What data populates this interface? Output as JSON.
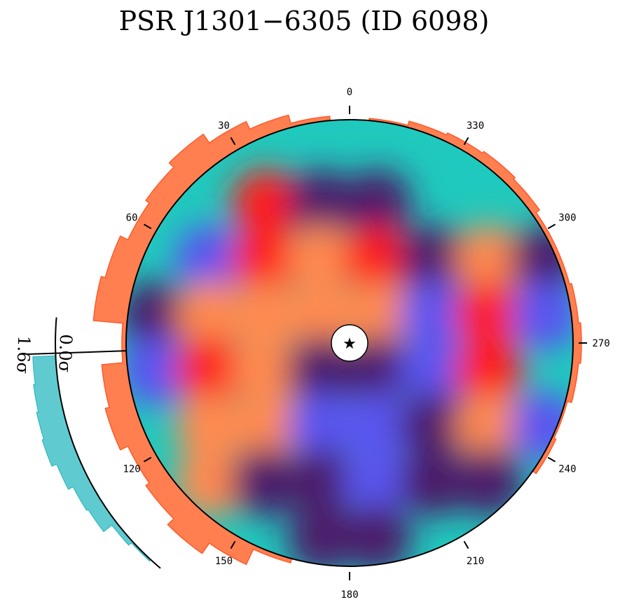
{
  "title": "PSR J1301−6305 (ID 6098)",
  "chart_data": {
    "type": "heatmap",
    "projection": "polar sky map (azimuth in degrees, clockwise from top)",
    "azimuth_ticks": [
      0,
      30,
      60,
      120,
      150,
      180,
      210,
      240,
      270,
      300,
      330
    ],
    "angular_profile_color": "#ff7f50",
    "significance_profile_color": "#5fcbd0",
    "significance_scale": {
      "labels": [
        "0.0σ",
        "1.6σ"
      ],
      "min": 0.0,
      "max": 1.6
    },
    "center_marker": "star",
    "colormap": [
      "#20c9bd",
      "#5a55f0",
      "#4b1c6b",
      "#ff1a1a",
      "#ff8a50"
    ],
    "map_grid": {
      "rows": 8,
      "cols": 8,
      "note_values": "relative intensity 0–1, row 0 = top",
      "values": [
        [
          0.0,
          0.0,
          0.0,
          0.0,
          0.0,
          0.0,
          0.0,
          0.0
        ],
        [
          0.0,
          0.1,
          0.7,
          0.3,
          0.4,
          0.0,
          0.0,
          0.0
        ],
        [
          0.0,
          0.2,
          0.6,
          0.9,
          0.7,
          0.3,
          0.8,
          0.4
        ],
        [
          0.3,
          0.8,
          0.9,
          1.0,
          0.8,
          0.2,
          0.6,
          0.2
        ],
        [
          0.2,
          0.7,
          0.9,
          0.4,
          0.3,
          0.2,
          0.5,
          0.1
        ],
        [
          0.1,
          0.8,
          0.9,
          0.2,
          0.2,
          0.4,
          0.8,
          0.2
        ],
        [
          0.0,
          0.9,
          0.4,
          0.4,
          0.2,
          0.3,
          0.4,
          0.0
        ],
        [
          0.0,
          0.0,
          0.1,
          0.3,
          0.4,
          0.1,
          0.0,
          0.0
        ]
      ]
    },
    "angular_profile": [
      {
        "az": 0,
        "r": 0.0
      },
      {
        "az": 10,
        "r": 0.02
      },
      {
        "az": 20,
        "r": 0.06
      },
      {
        "az": 30,
        "r": 0.1
      },
      {
        "az": 40,
        "r": 0.15
      },
      {
        "az": 50,
        "r": 0.12
      },
      {
        "az": 60,
        "r": 0.1
      },
      {
        "az": 70,
        "r": 0.14
      },
      {
        "az": 80,
        "r": 0.16
      },
      {
        "az": 90,
        "r": 0.02
      },
      {
        "az": 100,
        "r": 0.12
      },
      {
        "az": 110,
        "r": 0.14
      },
      {
        "az": 120,
        "r": 0.1
      },
      {
        "az": 130,
        "r": 0.12
      },
      {
        "az": 140,
        "r": 0.16
      },
      {
        "az": 150,
        "r": 0.1
      },
      {
        "az": 160,
        "r": 0.02
      },
      {
        "az": 170,
        "r": 0.0
      },
      {
        "az": 180,
        "r": 0.0
      },
      {
        "az": 190,
        "r": 0.0
      },
      {
        "az": 200,
        "r": 0.0
      },
      {
        "az": 210,
        "r": 0.0
      },
      {
        "az": 220,
        "r": 0.0
      },
      {
        "az": 230,
        "r": 0.0
      },
      {
        "az": 240,
        "r": 0.02
      },
      {
        "az": 250,
        "r": 0.01
      },
      {
        "az": 260,
        "r": 0.03
      },
      {
        "az": 270,
        "r": 0.04
      },
      {
        "az": 280,
        "r": 0.03
      },
      {
        "az": 290,
        "r": 0.02
      },
      {
        "az": 300,
        "r": 0.02
      },
      {
        "az": 310,
        "r": 0.04
      },
      {
        "az": 320,
        "r": 0.05
      },
      {
        "az": 330,
        "r": 0.04
      },
      {
        "az": 340,
        "r": 0.03
      },
      {
        "az": 350,
        "r": 0.01
      }
    ],
    "significance_profile": [
      {
        "az": 95,
        "sigma": 1.3
      },
      {
        "az": 100,
        "sigma": 1.4
      },
      {
        "az": 105,
        "sigma": 1.5
      },
      {
        "az": 110,
        "sigma": 1.6
      },
      {
        "az": 115,
        "sigma": 1.3
      },
      {
        "az": 120,
        "sigma": 1.0
      },
      {
        "az": 125,
        "sigma": 0.9
      },
      {
        "az": 130,
        "sigma": 0.3
      },
      {
        "az": 135,
        "sigma": 0.1
      }
    ]
  }
}
